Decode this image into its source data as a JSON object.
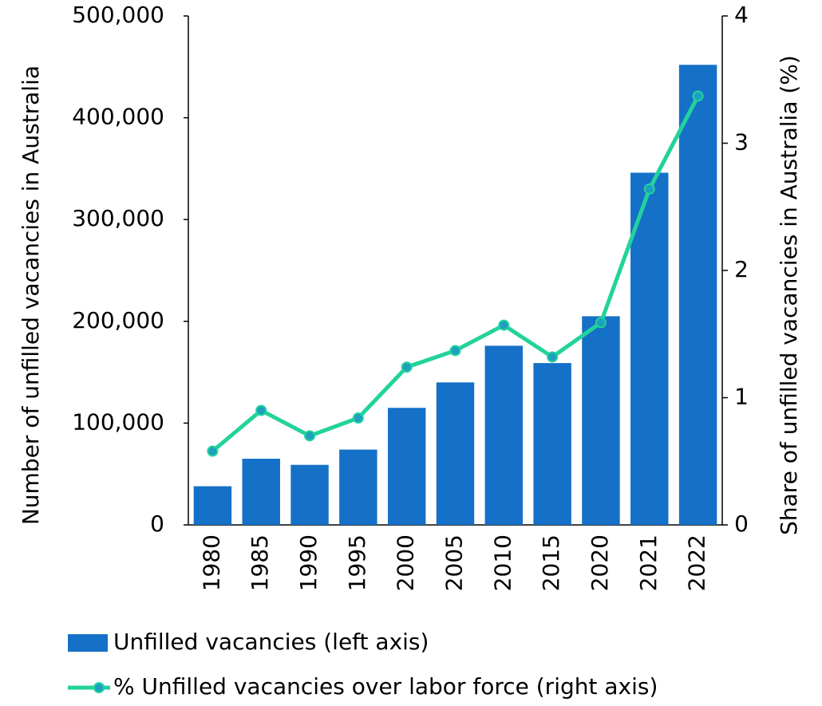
{
  "chart_data": {
    "type": "bar",
    "ylabel": "Number of unfilled vacancies in Australia",
    "y2label": "Share of unfilled vacancies in Australia (%)",
    "categories": [
      "1980",
      "1985",
      "1990",
      "1995",
      "2000",
      "2005",
      "2010",
      "2015",
      "2020",
      "2021",
      "2022"
    ],
    "series": [
      {
        "name": "Unfilled vacancies (left axis)",
        "type": "bar",
        "axis": "y",
        "color": "#1570c8",
        "values": [
          38000,
          65000,
          59000,
          74000,
          115000,
          140000,
          176000,
          159000,
          205000,
          346000,
          452000
        ]
      },
      {
        "name": "% Unfilled vacancies over labor force (right axis)",
        "type": "line",
        "axis": "y2",
        "color": "#22d39b",
        "marker_color": "#1f9fc0",
        "values": [
          0.58,
          0.9,
          0.7,
          0.84,
          1.24,
          1.37,
          1.57,
          1.32,
          1.59,
          2.64,
          3.37
        ]
      }
    ],
    "ylim": [
      0,
      500000
    ],
    "yticks": [
      0,
      {
        "value": 100000,
        "label": "100,000"
      },
      {
        "value": 200000,
        "label": "200,000"
      },
      {
        "value": 300000,
        "label": "300,000"
      },
      {
        "value": 400000,
        "label": "400,000"
      },
      {
        "value": 500000,
        "label": "500,000"
      }
    ],
    "y2lim": [
      0,
      4
    ],
    "y2ticks": [
      0,
      1,
      2,
      3,
      4
    ]
  }
}
